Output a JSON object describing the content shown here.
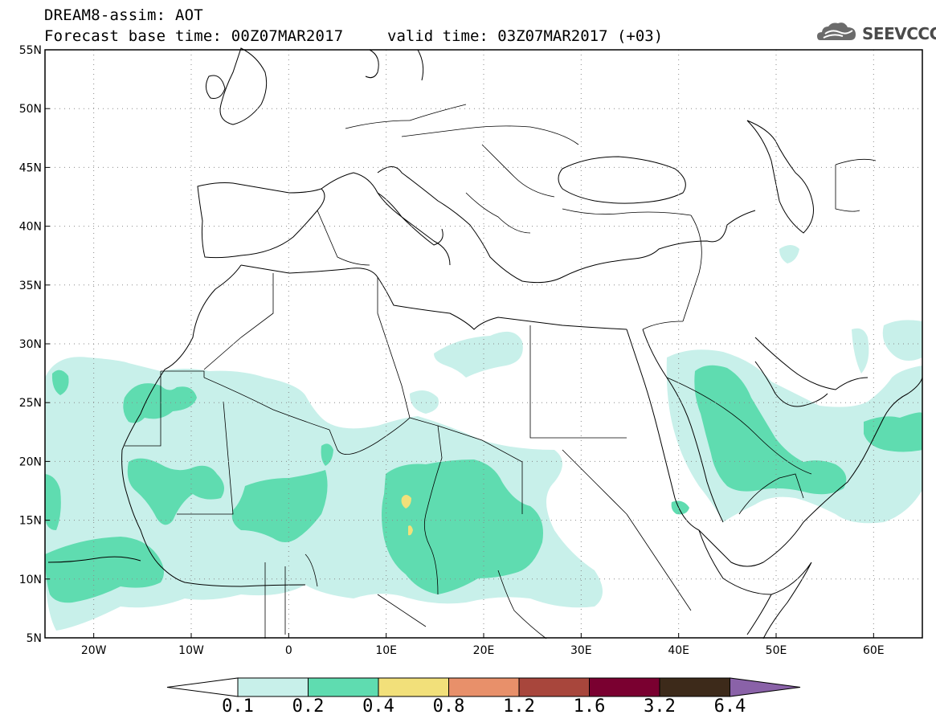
{
  "header": {
    "title": "DREAM8-assim: AOT",
    "base_time": "Forecast base time: 00Z07MAR2017",
    "valid_time": "valid time: 03Z07MAR2017 (+03)",
    "logo_text": "SEEVCCC",
    "logo_icon": "cloud-logo-icon"
  },
  "map": {
    "projection": "lat-lon",
    "lon_range": [
      -25,
      65
    ],
    "lat_range": [
      5,
      55
    ],
    "lat_ticks": [
      "55N",
      "50N",
      "45N",
      "40N",
      "35N",
      "30N",
      "25N",
      "20N",
      "15N",
      "10N",
      "5N"
    ],
    "lon_ticks": [
      "20W",
      "10W",
      "0",
      "10E",
      "20E",
      "30E",
      "40E",
      "50E",
      "60E"
    ],
    "gridlines": "dotted",
    "variable": "Aerosol optical thickness"
  },
  "colorbar": {
    "labels": [
      "0.1",
      "0.2",
      "0.4",
      "0.8",
      "1.2",
      "1.6",
      "3.2",
      "6.4"
    ],
    "colors": [
      "#ffffff",
      "#c8f0ea",
      "#5fdcb0",
      "#f2e07a",
      "#e8906a",
      "#a8463c",
      "#7a0030",
      "#3d2a1a",
      "#8a62a8"
    ]
  }
}
